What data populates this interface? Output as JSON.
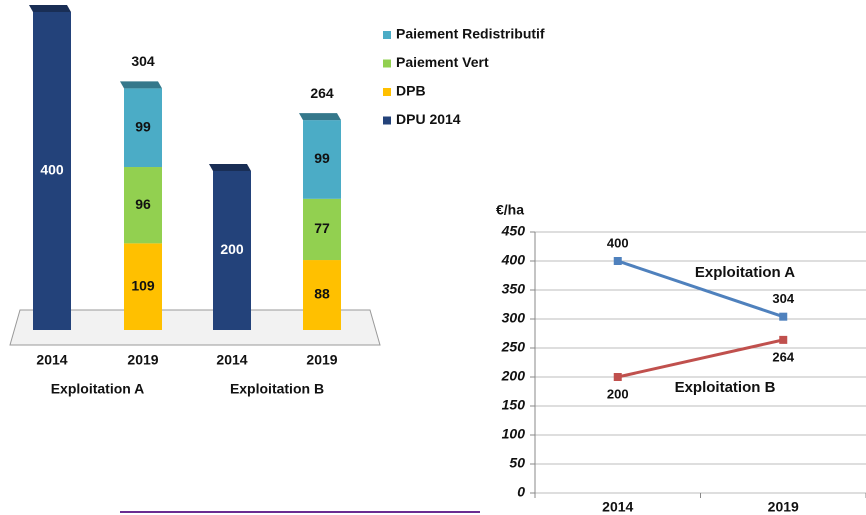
{
  "chart_data": [
    {
      "type": "stacked_bar",
      "categories": [
        "2014",
        "2019",
        "2014",
        "2019"
      ],
      "groups": [
        "Exploitation A",
        "Exploitation B"
      ],
      "series": [
        {
          "name": "DPU 2014",
          "color": "#23427a",
          "values": [
            400,
            null,
            200,
            null
          ]
        },
        {
          "name": "DPB",
          "color": "#ffc000",
          "values": [
            null,
            109,
            null,
            88
          ]
        },
        {
          "name": "Paiement Vert",
          "color": "#92d050",
          "values": [
            null,
            96,
            null,
            77
          ]
        },
        {
          "name": "Paiement Redistributif",
          "color": "#4bacc6",
          "values": [
            null,
            99,
            null,
            99
          ]
        }
      ],
      "totals": [
        null,
        304,
        null,
        264
      ]
    },
    {
      "type": "line",
      "ylabel": "€/ha",
      "categories": [
        "2014",
        "2019"
      ],
      "series": [
        {
          "name": "Exploitation A",
          "color": "#4f81bd",
          "values": [
            400,
            304
          ]
        },
        {
          "name": "Exploitation B",
          "color": "#c0504d",
          "values": [
            200,
            264
          ]
        }
      ],
      "ylim": [
        0,
        450
      ],
      "yticks": [
        0,
        50,
        100,
        150,
        200,
        250,
        300,
        350,
        400,
        450
      ],
      "grid": true
    }
  ]
}
